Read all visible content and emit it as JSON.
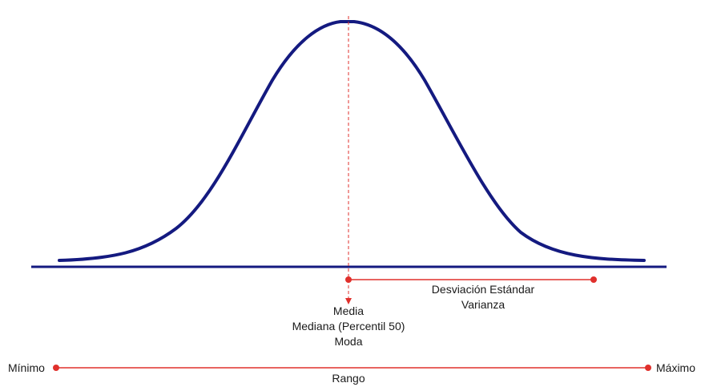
{
  "labels": {
    "mean": "Media",
    "median": "Mediana (Percentil 50)",
    "mode": "Moda",
    "std_dev": "Desviación Estándar",
    "variance": "Varianza",
    "minimum": "Mínimo",
    "maximum": "Máximo",
    "range": "Rango"
  },
  "colors": {
    "curve": "#141a80",
    "axis": "#141a80",
    "annotation": "#e0302c"
  }
}
